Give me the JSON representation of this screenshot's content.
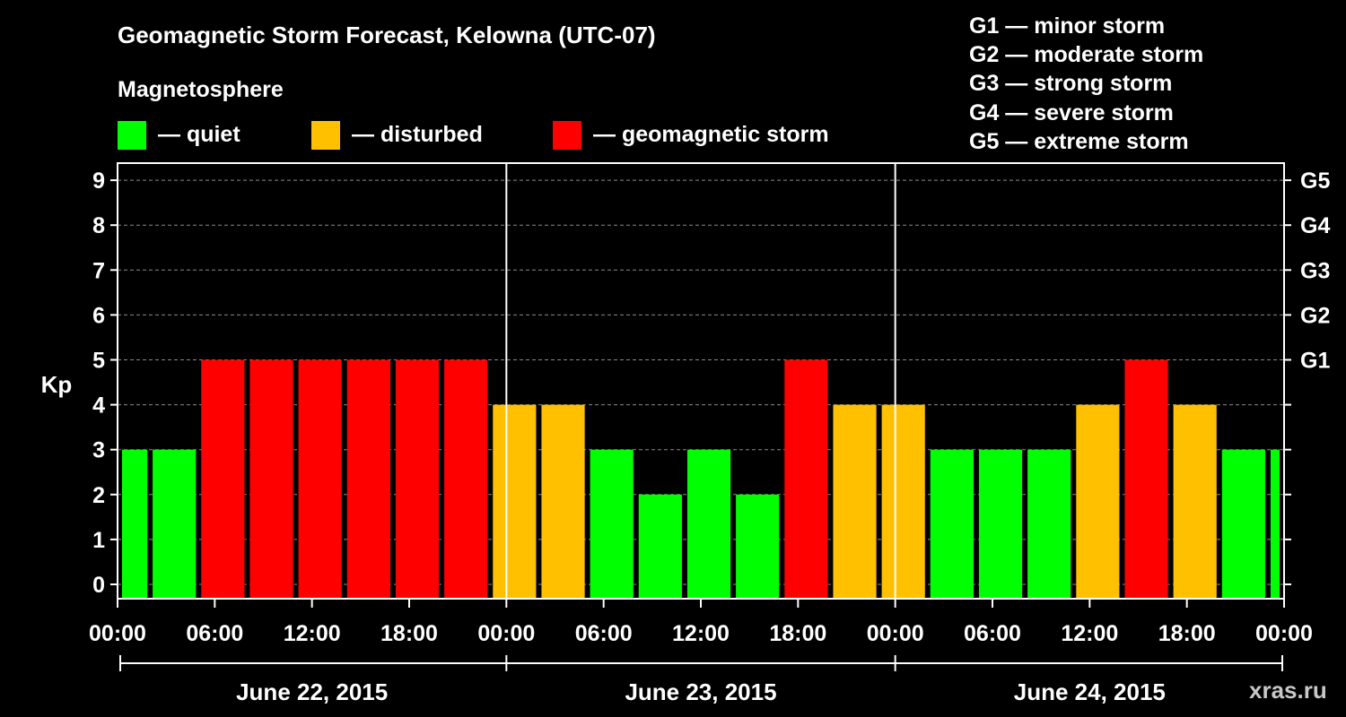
{
  "header": {
    "title": "Geomagnetic Storm Forecast, Kelowna (UTC-07)",
    "subtitle": "Magnetosphere"
  },
  "legend": [
    {
      "label": "— quiet",
      "color": "#00ff00"
    },
    {
      "label": "— disturbed",
      "color": "#ffc000"
    },
    {
      "label": "— geomagnetic storm",
      "color": "#ff0000"
    }
  ],
  "storm_scale": [
    "G1 — minor storm",
    "G2 — moderate storm",
    "G3 — strong storm",
    "G4 — severe storm",
    "G5 — extreme storm"
  ],
  "watermark": "xras.ru",
  "chart_data": {
    "type": "bar",
    "ylabel": "Kp",
    "ylim": [
      -0.3,
      9.4
    ],
    "y_ticks": [
      0,
      1,
      2,
      3,
      4,
      5,
      6,
      7,
      8,
      9
    ],
    "y_right_labels": [
      {
        "kp": 5,
        "label": "G1"
      },
      {
        "kp": 6,
        "label": "G2"
      },
      {
        "kp": 7,
        "label": "G3"
      },
      {
        "kp": 8,
        "label": "G4"
      },
      {
        "kp": 9,
        "label": "G5"
      }
    ],
    "x_tick_labels": [
      "00:00",
      "06:00",
      "12:00",
      "18:00",
      "00:00",
      "06:00",
      "12:00",
      "18:00",
      "00:00",
      "06:00",
      "12:00",
      "18:00",
      "00:00"
    ],
    "days": [
      "June 22, 2015",
      "June 23, 2015",
      "June 24, 2015"
    ],
    "interval_hours": 3,
    "first_interval_start": "June 22, 2015 -01:00",
    "values": [
      3,
      3,
      5,
      5,
      5,
      5,
      5,
      5,
      4,
      4,
      3,
      2,
      3,
      2,
      5,
      4,
      4,
      3,
      3,
      3,
      4,
      5,
      4,
      3,
      3
    ],
    "colors": {
      "quiet": "#00ff00",
      "disturbed": "#ffc000",
      "storm": "#ff0000"
    },
    "grid": "dashed horizontal"
  }
}
